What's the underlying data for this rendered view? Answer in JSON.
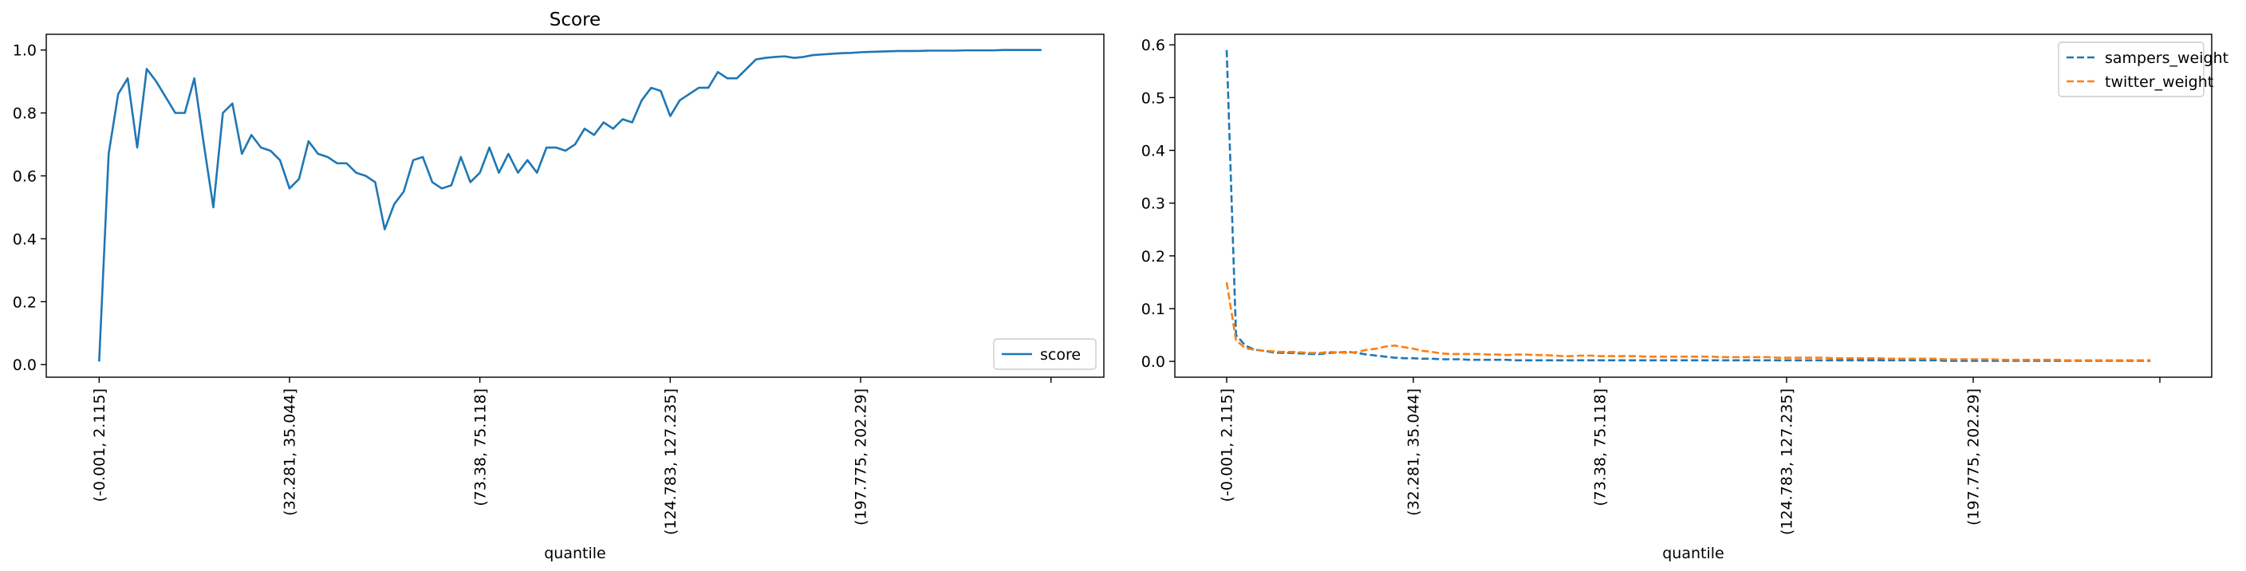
{
  "chart_data": [
    {
      "type": "line",
      "title": "Score",
      "xlabel": "quantile",
      "ylabel": "",
      "ylim": [
        -0.04,
        1.05
      ],
      "yticks": [
        "0.0",
        "0.2",
        "0.4",
        "0.6",
        "0.8",
        "1.0"
      ],
      "xtick_labels": [
        "(-0.001, 2.115]",
        "(32.281, 35.044]",
        "(73.38, 75.118]",
        "(124.783, 127.235]",
        "(197.775, 202.29]",
        ""
      ],
      "xtick_positions": [
        0,
        20,
        40,
        60,
        80,
        100
      ],
      "grid": false,
      "legend_placement": "lower-right",
      "series": [
        {
          "name": "score",
          "color": "#1f77b4",
          "dash": "solid",
          "values": [
            0.01,
            0.67,
            0.86,
            0.91,
            0.69,
            0.94,
            0.9,
            0.85,
            0.8,
            0.8,
            0.91,
            0.7,
            0.5,
            0.8,
            0.83,
            0.67,
            0.73,
            0.69,
            0.68,
            0.65,
            0.56,
            0.59,
            0.71,
            0.67,
            0.66,
            0.64,
            0.64,
            0.61,
            0.6,
            0.58,
            0.43,
            0.51,
            0.55,
            0.65,
            0.66,
            0.58,
            0.56,
            0.57,
            0.66,
            0.58,
            0.61,
            0.69,
            0.61,
            0.67,
            0.61,
            0.65,
            0.61,
            0.69,
            0.69,
            0.68,
            0.7,
            0.75,
            0.73,
            0.77,
            0.75,
            0.78,
            0.77,
            0.84,
            0.88,
            0.87,
            0.79,
            0.84,
            0.86,
            0.88,
            0.88,
            0.93,
            0.91,
            0.91,
            0.94,
            0.97,
            0.975,
            0.978,
            0.98,
            0.975,
            0.978,
            0.984,
            0.986,
            0.988,
            0.99,
            0.991,
            0.993,
            0.994,
            0.995,
            0.996,
            0.997,
            0.997,
            0.997,
            0.998,
            0.998,
            0.998,
            0.998,
            0.999,
            0.999,
            0.999,
            0.999,
            1.0,
            1.0,
            1.0,
            1.0,
            1.0
          ]
        }
      ]
    },
    {
      "type": "line",
      "title": "",
      "xlabel": "quantile",
      "ylabel": "",
      "ylim": [
        -0.03,
        0.62
      ],
      "yticks": [
        "0.0",
        "0.1",
        "0.2",
        "0.3",
        "0.4",
        "0.5",
        "0.6"
      ],
      "xtick_labels": [
        "(-0.001, 2.115]",
        "(32.281, 35.044]",
        "(73.38, 75.118]",
        "(124.783, 127.235]",
        "(197.775, 202.29]",
        ""
      ],
      "xtick_positions": [
        0,
        20,
        40,
        60,
        80,
        100
      ],
      "grid": false,
      "legend_placement": "upper-right",
      "series": [
        {
          "name": "sampers_weight",
          "color": "#1f77b4",
          "dash": "dashed",
          "values": [
            0.59,
            0.05,
            0.03,
            0.022,
            0.02,
            0.017,
            0.016,
            0.016,
            0.015,
            0.014,
            0.014,
            0.016,
            0.017,
            0.018,
            0.016,
            0.013,
            0.011,
            0.009,
            0.007,
            0.006,
            0.006,
            0.005,
            0.005,
            0.004,
            0.004,
            0.004,
            0.003,
            0.003,
            0.003,
            0.003,
            0.003,
            0.002,
            0.002,
            0.002,
            0.002,
            0.002,
            0.002,
            0.002,
            0.002,
            0.002,
            0.002,
            0.002,
            0.002,
            0.002,
            0.002,
            0.002,
            0.002,
            0.002,
            0.002,
            0.002,
            0.002,
            0.002,
            0.002,
            0.002,
            0.002,
            0.002,
            0.002,
            0.002,
            0.002,
            0.002,
            0.002,
            0.002,
            0.002,
            0.002,
            0.002,
            0.002,
            0.002,
            0.002,
            0.002,
            0.002,
            0.002,
            0.002,
            0.002,
            0.002,
            0.002,
            0.002,
            0.002,
            0.001,
            0.001,
            0.001,
            0.001,
            0.001,
            0.001,
            0.001,
            0.001,
            0.001,
            0.001,
            0.001,
            0.001,
            0.001,
            0.001,
            0.001,
            0.001,
            0.001,
            0.001,
            0.001,
            0.001,
            0.001,
            0.001,
            0.001
          ]
        },
        {
          "name": "twitter_weight",
          "color": "#ff7f0e",
          "dash": "dashed",
          "values": [
            0.15,
            0.04,
            0.025,
            0.022,
            0.02,
            0.019,
            0.018,
            0.018,
            0.017,
            0.016,
            0.016,
            0.018,
            0.017,
            0.016,
            0.018,
            0.022,
            0.024,
            0.028,
            0.03,
            0.027,
            0.024,
            0.02,
            0.018,
            0.015,
            0.014,
            0.014,
            0.014,
            0.014,
            0.013,
            0.013,
            0.012,
            0.013,
            0.013,
            0.012,
            0.012,
            0.011,
            0.01,
            0.01,
            0.011,
            0.011,
            0.01,
            0.01,
            0.01,
            0.01,
            0.01,
            0.009,
            0.009,
            0.009,
            0.009,
            0.009,
            0.009,
            0.009,
            0.009,
            0.008,
            0.008,
            0.008,
            0.008,
            0.008,
            0.008,
            0.007,
            0.007,
            0.007,
            0.007,
            0.007,
            0.007,
            0.006,
            0.006,
            0.006,
            0.006,
            0.006,
            0.006,
            0.005,
            0.005,
            0.005,
            0.005,
            0.005,
            0.005,
            0.004,
            0.004,
            0.004,
            0.004,
            0.004,
            0.004,
            0.003,
            0.003,
            0.003,
            0.003,
            0.003,
            0.003,
            0.003,
            0.002,
            0.002,
            0.002,
            0.002,
            0.002,
            0.002,
            0.002,
            0.002,
            0.002,
            0.002
          ]
        }
      ]
    }
  ]
}
